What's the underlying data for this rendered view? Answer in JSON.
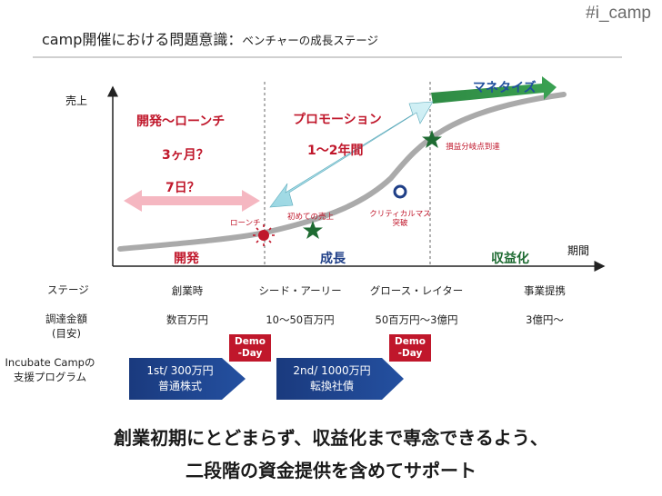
{
  "hashtag": "#i_camp",
  "title": {
    "main": "camp開催における問題意識：",
    "sub": "ベンチャーの成長ステージ"
  },
  "chart": {
    "y_label": "売上",
    "x_label": "期間",
    "launch": {
      "title": "開発～ローンチ",
      "line1": "3ヶ月？",
      "line2": "7日？"
    },
    "promotion": {
      "title": "プロモーション",
      "duration": "1～2年間"
    },
    "monetize": "マネタイズ",
    "markers": {
      "launch": "ローンチ",
      "first_sales": "初めての売上",
      "critical_mass": "クリティカルマス突破",
      "breakeven": "損益分岐点到達"
    },
    "phases": {
      "dev": "開発",
      "growth": "成長",
      "profit": "収益化"
    }
  },
  "table": {
    "stage_label": "ステージ",
    "stages": [
      "創業時",
      "シード・アーリー",
      "グロース・レイター",
      "事業提携"
    ],
    "funding_label": "調達金額",
    "funding_note": "(目安)",
    "funding": [
      "数百万円",
      "10～50百万円",
      "50百万円～3億円",
      "3億円～"
    ]
  },
  "program": {
    "label_line1": "Incubate Campの",
    "label_line2": "支援プログラム",
    "demo_line1": "Demo",
    "demo_line2": "-Day",
    "first": {
      "line1": "1st/ 300万円",
      "line2": "普通株式"
    },
    "second": {
      "line1": "2nd/ 1000万円",
      "line2": "転換社債"
    }
  },
  "footer": {
    "line1": "創業初期にとどまらず、収益化まで専念できるよう、",
    "line2": "二段階の資金提供を含めてサポート"
  },
  "colors": {
    "red": "#c0172b",
    "navy": "#1f3f87",
    "green": "#1e6b32",
    "cyan": "#b4e4ec"
  }
}
